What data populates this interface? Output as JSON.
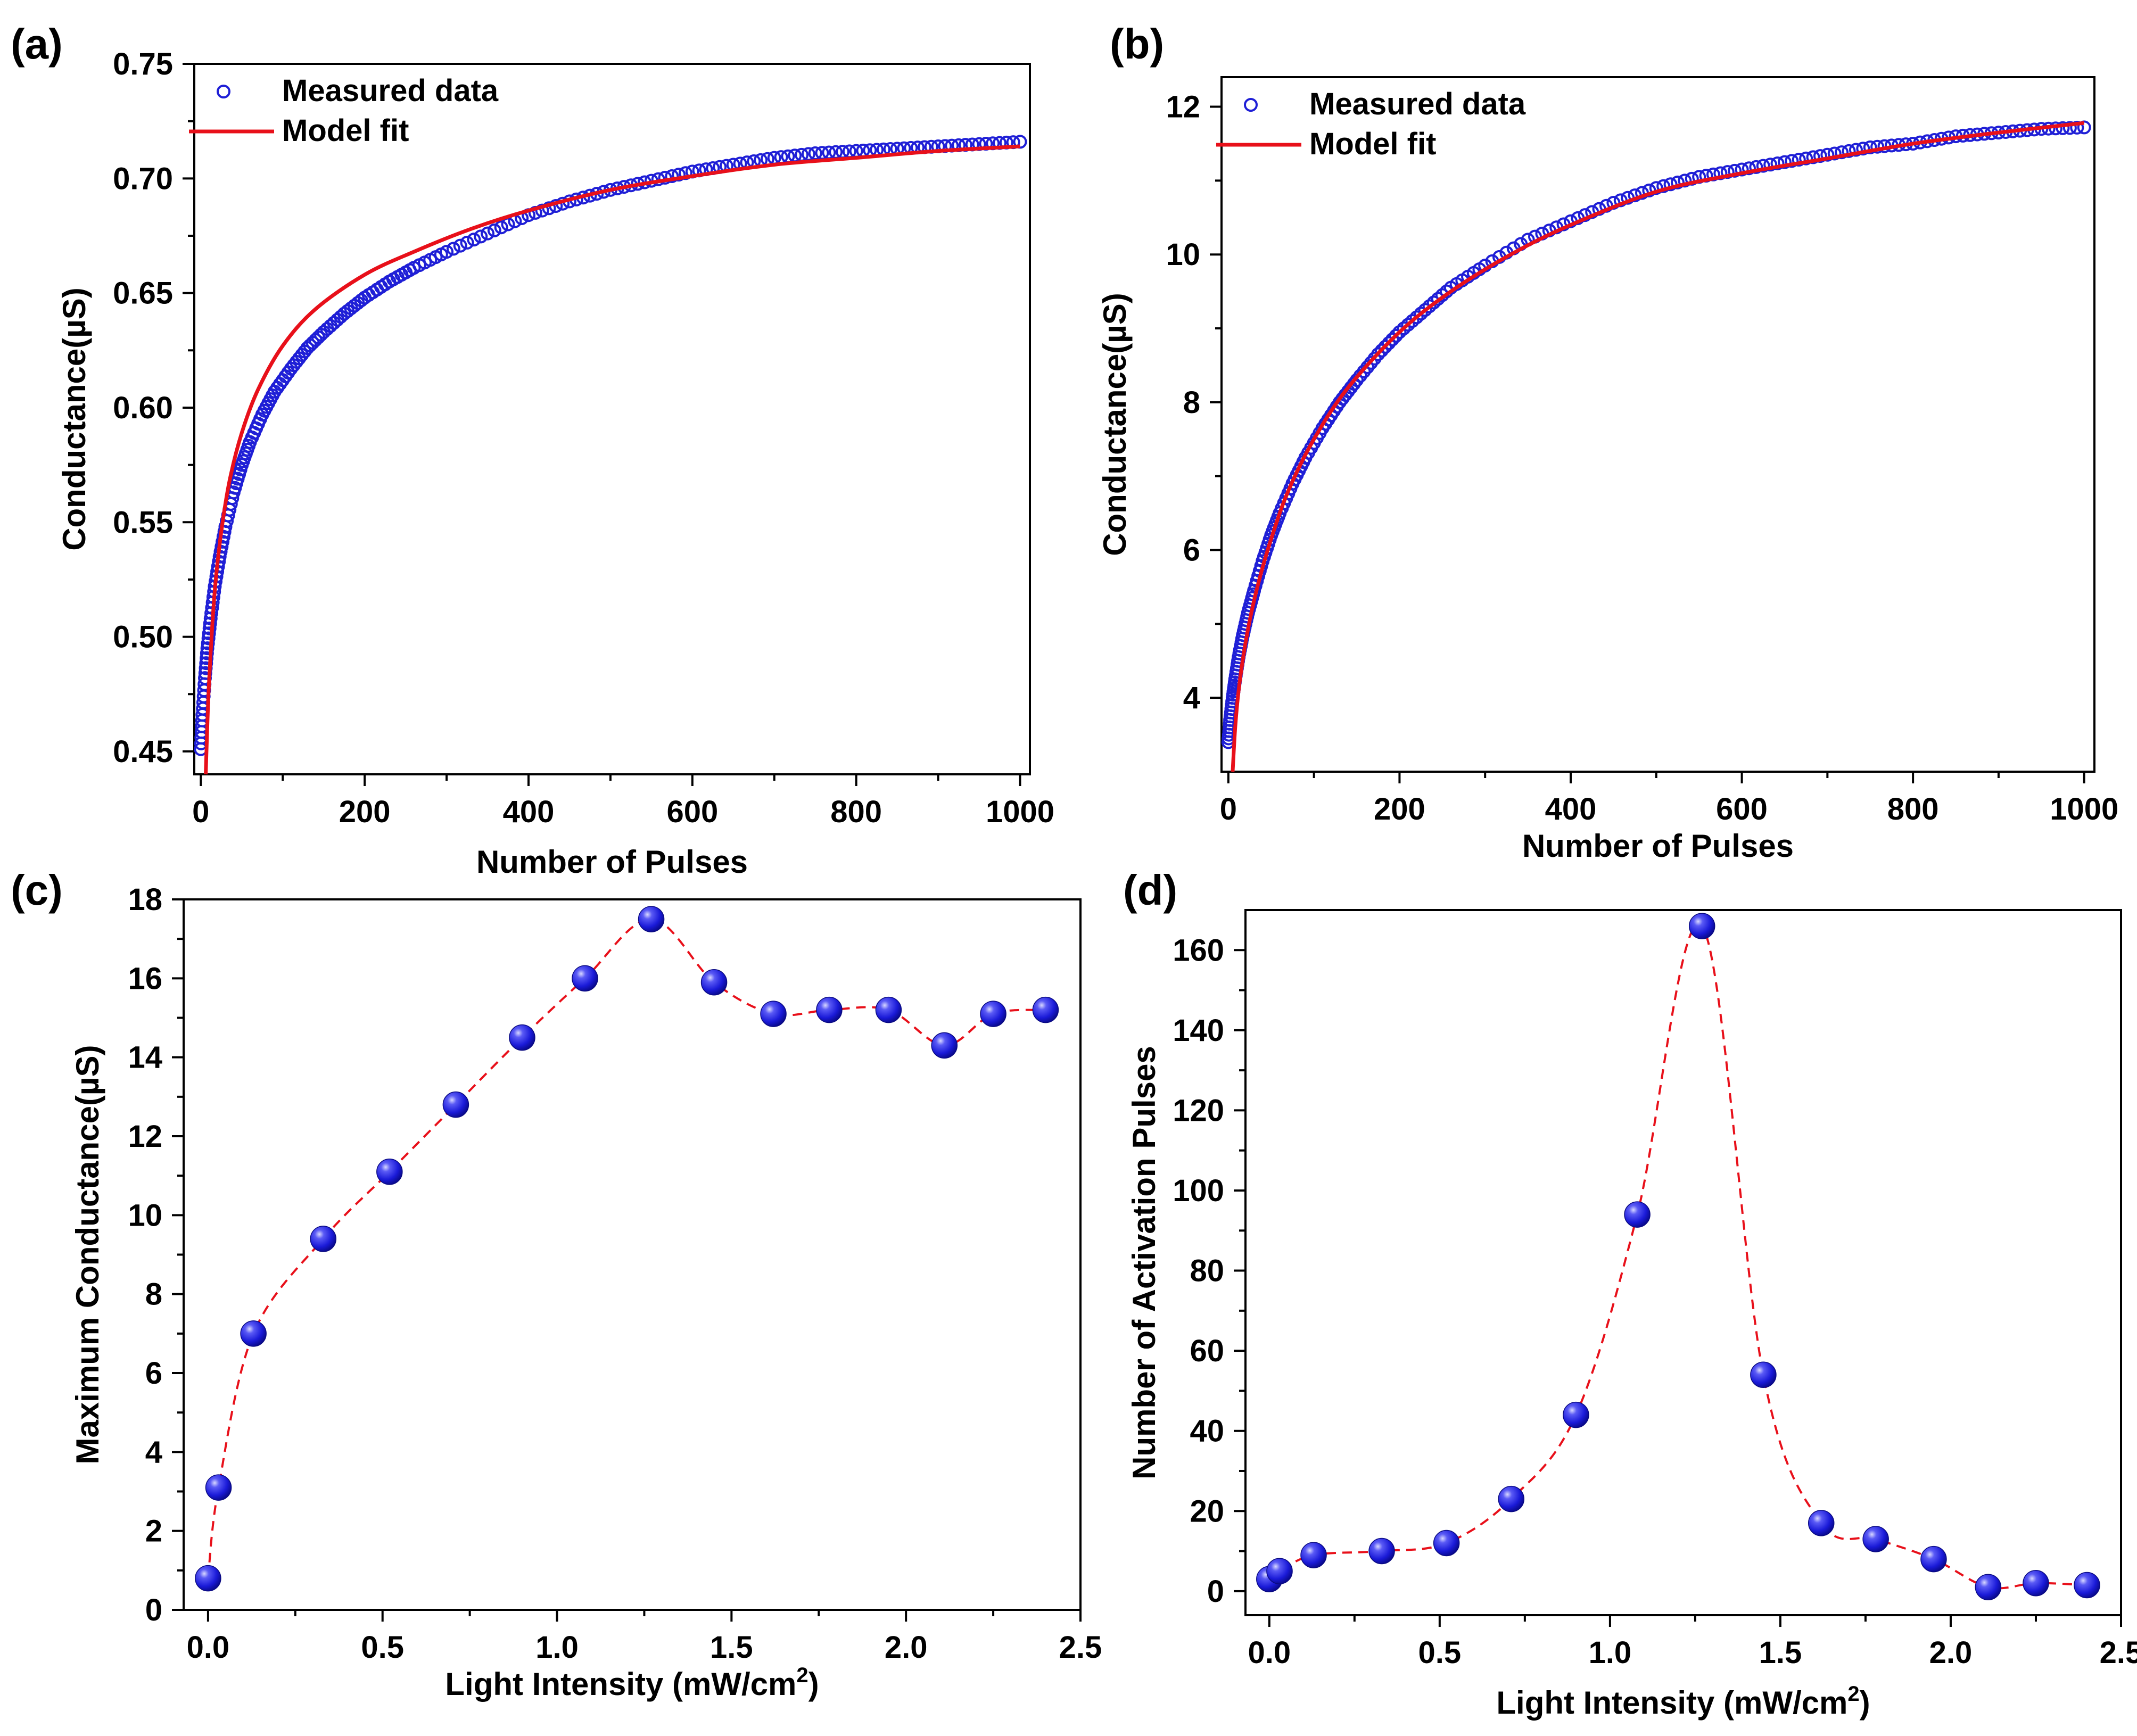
{
  "figure": {
    "panel_labels": [
      "(a)",
      "(b)",
      "(c)",
      "(d)"
    ]
  },
  "colors": {
    "measured": "#1f1fd6",
    "fit": "#e8101a",
    "marker_fill": "#2f2fe6",
    "marker_highlight": "#c8c8ff",
    "dashed": "#e8101a"
  },
  "chart_data": [
    {
      "panel": "(a)",
      "type": "scatter",
      "title": "",
      "xlabel": "Number of Pulses",
      "ylabel": "Conductance(µS)",
      "xlim": [
        -8,
        1012
      ],
      "ylim": [
        0.44,
        0.75
      ],
      "xticks": [
        0,
        200,
        400,
        600,
        800,
        1000
      ],
      "xtick_labels": [
        "0",
        "200",
        "400",
        "600",
        "800",
        "1000"
      ],
      "yticks": [
        0.45,
        0.5,
        0.55,
        0.6,
        0.65,
        0.7,
        0.75
      ],
      "ytick_labels": [
        "0.45",
        "0.50",
        "0.55",
        "0.60",
        "0.65",
        "0.70",
        "0.75"
      ],
      "legend": {
        "position": "top-left",
        "entries": [
          "Measured data",
          "Model fit"
        ]
      },
      "series": [
        {
          "name": "Measured data",
          "style": "open-circle",
          "x": [
            0,
            2,
            5,
            8,
            12,
            17,
            23,
            30,
            40,
            50,
            60,
            75,
            90,
            110,
            130,
            150,
            175,
            200,
            230,
            260,
            300,
            350,
            400,
            450,
            500,
            550,
            600,
            650,
            700,
            750,
            800,
            850,
            900,
            950,
            1000
          ],
          "y": [
            0.451,
            0.466,
            0.482,
            0.495,
            0.508,
            0.522,
            0.535,
            0.548,
            0.563,
            0.575,
            0.585,
            0.597,
            0.607,
            0.617,
            0.626,
            0.633,
            0.641,
            0.648,
            0.655,
            0.661,
            0.668,
            0.676,
            0.684,
            0.69,
            0.695,
            0.699,
            0.703,
            0.706,
            0.709,
            0.711,
            0.712,
            0.713,
            0.714,
            0.715,
            0.716
          ]
        },
        {
          "name": "Model fit",
          "style": "line",
          "x": [
            6,
            8,
            10,
            14,
            18,
            25,
            35,
            50,
            70,
            100,
            140,
            200,
            260,
            330,
            400,
            500,
            600,
            700,
            800,
            900,
            1000
          ],
          "y": [
            0.44,
            0.462,
            0.48,
            0.505,
            0.524,
            0.546,
            0.568,
            0.589,
            0.608,
            0.627,
            0.643,
            0.658,
            0.668,
            0.678,
            0.686,
            0.695,
            0.701,
            0.706,
            0.709,
            0.712,
            0.714
          ]
        }
      ]
    },
    {
      "panel": "(b)",
      "type": "scatter",
      "title": "",
      "xlabel": "Number of Pulses",
      "ylabel": "Conductance(µS)",
      "xlim": [
        -8,
        1012
      ],
      "ylim": [
        3.0,
        12.4
      ],
      "xticks": [
        0,
        200,
        400,
        600,
        800,
        1000
      ],
      "xtick_labels": [
        "0",
        "200",
        "400",
        "600",
        "800",
        "1000"
      ],
      "yticks": [
        4,
        6,
        8,
        10,
        12
      ],
      "ytick_labels": [
        "4",
        "6",
        "8",
        "10",
        "12"
      ],
      "legend": {
        "position": "top-left",
        "entries": [
          "Measured data",
          "Model fit"
        ]
      },
      "series": [
        {
          "name": "Measured data",
          "style": "open-circle",
          "x": [
            0,
            2,
            5,
            8,
            12,
            17,
            23,
            30,
            40,
            50,
            60,
            75,
            90,
            110,
            130,
            150,
            175,
            200,
            230,
            260,
            300,
            350,
            400,
            450,
            500,
            550,
            600,
            650,
            700,
            750,
            800,
            850,
            900,
            950,
            1000
          ],
          "y": [
            3.4,
            3.7,
            4.0,
            4.25,
            4.55,
            4.85,
            5.15,
            5.45,
            5.85,
            6.2,
            6.5,
            6.9,
            7.25,
            7.65,
            8.0,
            8.3,
            8.65,
            8.95,
            9.25,
            9.55,
            9.85,
            10.2,
            10.45,
            10.7,
            10.9,
            11.05,
            11.15,
            11.25,
            11.35,
            11.45,
            11.5,
            11.6,
            11.65,
            11.7,
            11.72
          ]
        },
        {
          "name": "Model fit",
          "style": "line",
          "x": [
            5,
            8,
            12,
            18,
            25,
            35,
            50,
            70,
            100,
            140,
            200,
            260,
            330,
            400,
            500,
            600,
            700,
            800,
            900,
            1000
          ],
          "y": [
            3.0,
            3.6,
            4.1,
            4.6,
            5.05,
            5.55,
            6.15,
            6.8,
            7.5,
            8.2,
            8.95,
            9.5,
            10.0,
            10.4,
            10.85,
            11.1,
            11.3,
            11.5,
            11.65,
            11.78
          ]
        }
      ]
    },
    {
      "panel": "(c)",
      "type": "scatter",
      "title": "",
      "xlabel": "Light Intensity (mW/cm²)",
      "ylabel": "Maximum Conductance(µS)",
      "xlim": [
        -0.07,
        2.5
      ],
      "ylim": [
        0,
        18
      ],
      "xticks": [
        0.0,
        0.5,
        1.0,
        1.5,
        2.0,
        2.5
      ],
      "xtick_labels": [
        "0.0",
        "0.5",
        "1.0",
        "1.5",
        "2.0",
        "2.5"
      ],
      "yticks": [
        0,
        2,
        4,
        6,
        8,
        10,
        12,
        14,
        16,
        18
      ],
      "ytick_labels": [
        "0",
        "2",
        "4",
        "6",
        "8",
        "10",
        "12",
        "14",
        "16",
        "18"
      ],
      "series": [
        {
          "name": "Maximum conductance",
          "style": "sphere-dashed",
          "x": [
            0.0,
            0.03,
            0.13,
            0.33,
            0.52,
            0.71,
            0.9,
            1.08,
            1.27,
            1.45,
            1.62,
            1.78,
            1.95,
            2.11,
            2.25,
            2.4
          ],
          "y": [
            0.8,
            3.1,
            7.0,
            9.4,
            11.1,
            12.8,
            14.5,
            16.0,
            17.5,
            15.9,
            15.1,
            15.2,
            15.2,
            14.3,
            15.1,
            15.2
          ]
        }
      ]
    },
    {
      "panel": "(d)",
      "type": "scatter",
      "title": "",
      "xlabel": "Light Intensity (mW/cm²)",
      "ylabel": "Number of Activation Pulses",
      "xlim": [
        -0.07,
        2.5
      ],
      "ylim": [
        -6,
        170
      ],
      "xticks": [
        0.0,
        0.5,
        1.0,
        1.5,
        2.0,
        2.5
      ],
      "xtick_labels": [
        "0.0",
        "0.5",
        "1.0",
        "1.5",
        "2.0",
        "2.5"
      ],
      "yticks": [
        0,
        20,
        40,
        60,
        80,
        100,
        120,
        140,
        160
      ],
      "ytick_labels": [
        "0",
        "20",
        "40",
        "60",
        "80",
        "100",
        "120",
        "140",
        "160"
      ],
      "series": [
        {
          "name": "Activation pulses",
          "style": "sphere-dashed",
          "x": [
            0.0,
            0.03,
            0.13,
            0.33,
            0.52,
            0.71,
            0.9,
            1.08,
            1.27,
            1.45,
            1.62,
            1.78,
            1.95,
            2.11,
            2.25,
            2.4
          ],
          "y": [
            3,
            5,
            9,
            10,
            12,
            23,
            44,
            94,
            166,
            54,
            17,
            13,
            8,
            1,
            2,
            1.5
          ]
        }
      ]
    }
  ]
}
